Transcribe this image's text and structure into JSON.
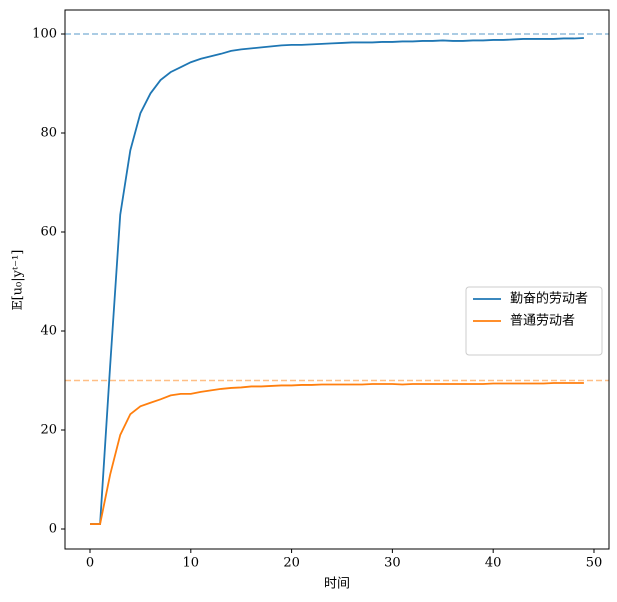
{
  "chart_data": {
    "type": "line",
    "x_label": "时间",
    "y_label": "𝔼[u₀|yᵗ⁻¹]",
    "x": [
      0,
      1,
      2,
      3,
      4,
      5,
      6,
      7,
      8,
      9,
      10,
      11,
      12,
      13,
      14,
      15,
      16,
      17,
      18,
      19,
      20,
      21,
      22,
      23,
      24,
      25,
      26,
      27,
      28,
      29,
      30,
      31,
      32,
      33,
      34,
      35,
      36,
      37,
      38,
      39,
      40,
      41,
      42,
      43,
      44,
      45,
      46,
      47,
      48,
      49
    ],
    "series": [
      {
        "name": "勤奋的劳动者",
        "color": "#1f77b4",
        "values": [
          1,
          1,
          33,
          63.5,
          76.5,
          84,
          88,
          90.7,
          92.3,
          93.3,
          94.3,
          95,
          95.5,
          96,
          96.6,
          96.9,
          97.1,
          97.3,
          97.5,
          97.7,
          97.8,
          97.8,
          97.9,
          98,
          98.1,
          98.2,
          98.3,
          98.3,
          98.3,
          98.4,
          98.4,
          98.5,
          98.5,
          98.6,
          98.6,
          98.7,
          98.6,
          98.6,
          98.7,
          98.7,
          98.8,
          98.8,
          98.9,
          99,
          99,
          99,
          99,
          99.1,
          99.1,
          99.2
        ]
      },
      {
        "name": "普通劳动者",
        "color": "#ff7f0e",
        "values": [
          1,
          1,
          11,
          19,
          23.2,
          24.8,
          25.5,
          26.2,
          27,
          27.3,
          27.3,
          27.7,
          28,
          28.3,
          28.5,
          28.6,
          28.8,
          28.8,
          28.9,
          29,
          29,
          29.1,
          29.1,
          29.2,
          29.2,
          29.2,
          29.2,
          29.2,
          29.3,
          29.3,
          29.3,
          29.2,
          29.3,
          29.3,
          29.3,
          29.3,
          29.3,
          29.3,
          29.3,
          29.3,
          29.4,
          29.4,
          29.4,
          29.4,
          29.4,
          29.4,
          29.5,
          29.5,
          29.5,
          29.5
        ]
      }
    ],
    "reference_lines": [
      {
        "value": 100,
        "color": "#8fbbdc"
      },
      {
        "value": 30,
        "color": "#ffbf86"
      }
    ],
    "xlim": [
      -2.48,
      51.49
    ],
    "ylim": [
      -4.04,
      104.85
    ],
    "xticks": [
      0,
      10,
      20,
      30,
      40,
      50
    ],
    "yticks": [
      0,
      20,
      40,
      60,
      80,
      100
    ],
    "legend": "right"
  }
}
